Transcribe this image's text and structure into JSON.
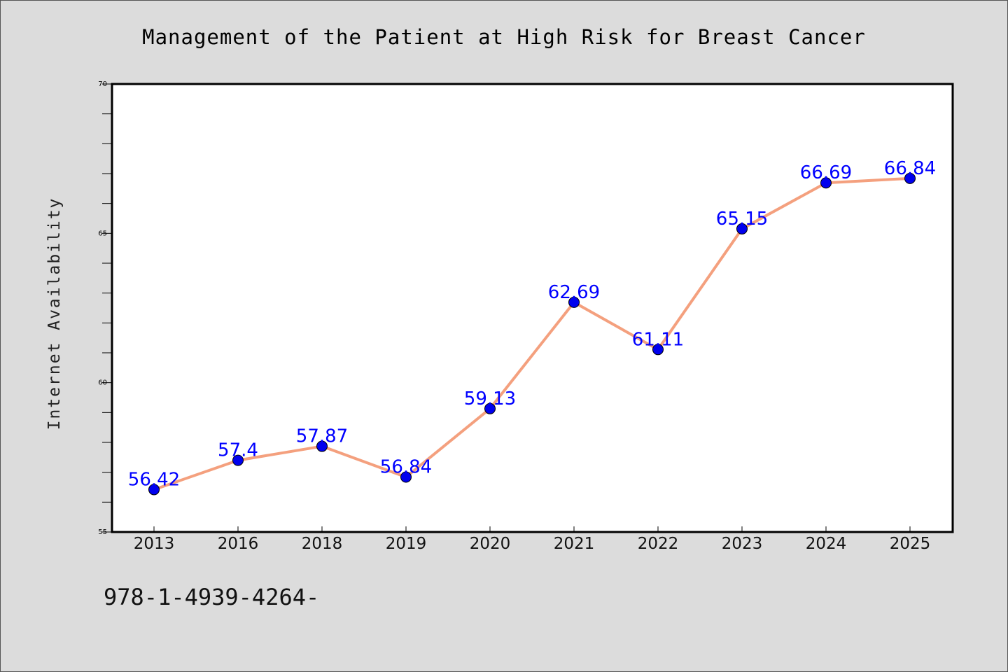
{
  "chart_data": {
    "type": "line",
    "title": "Management of the Patient at High Risk for Breast Cancer",
    "xlabel": "",
    "ylabel": "Internet Availability",
    "categories": [
      "2013",
      "2016",
      "2018",
      "2019",
      "2020",
      "2021",
      "2022",
      "2023",
      "2024",
      "2025"
    ],
    "series": [
      {
        "values": [
          56.42,
          57.4,
          57.87,
          56.84,
          59.13,
          62.69,
          61.11,
          65.15,
          66.69,
          66.84
        ],
        "data_labels": [
          "56.42",
          "57.4",
          "57.87",
          "56.84",
          "59.13",
          "62.69",
          "61.11",
          "65.15",
          "66.69",
          "66.84"
        ],
        "line_color": "#f4a07e",
        "marker_color": "#0000ee"
      }
    ],
    "ylim": [
      55,
      70
    ],
    "yticks": [
      "55",
      "60",
      "65",
      "70"
    ],
    "grid": false,
    "legend": "none"
  },
  "footnote": "978-1-4939-4264-",
  "colors": {
    "background": "#dcdcdc",
    "plot_background": "#ffffff",
    "data_label": "#0000ff"
  }
}
